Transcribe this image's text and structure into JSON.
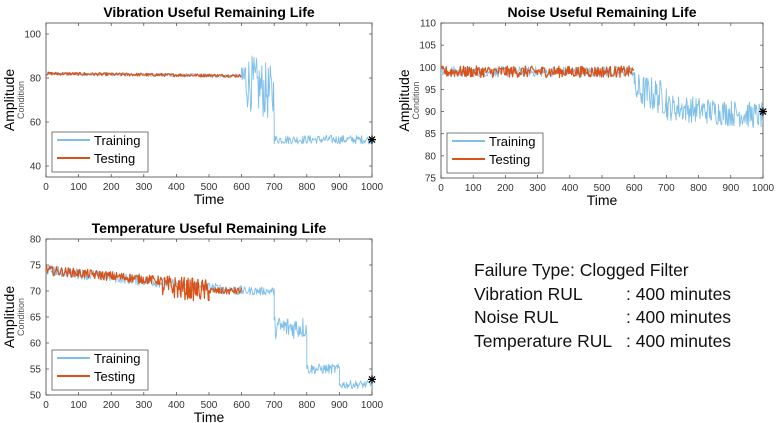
{
  "chart_data": [
    {
      "type": "line",
      "id": "vibration",
      "title": "Vibration Useful Remaining Life",
      "xlabel": "Time",
      "ylabel": "Amplitude",
      "ylabel_sub": "Condition",
      "xlim": [
        0,
        1000
      ],
      "ylim": [
        35,
        105
      ],
      "xticks": [
        0,
        100,
        200,
        300,
        400,
        500,
        600,
        700,
        800,
        900,
        1000
      ],
      "yticks": [
        40,
        60,
        80,
        100
      ],
      "legend": [
        "Training",
        "Testing"
      ],
      "legend_position": "bottom-left",
      "end_marker": {
        "x": 1000,
        "y": 52
      },
      "series": [
        {
          "name": "Training",
          "color": "#7fbfe8",
          "segments": [
            {
              "x": [
                0,
                600
              ],
              "level": [
                82,
                81
              ],
              "noise": 0.8
            },
            {
              "x": [
                600,
                700
              ],
              "level": [
                80,
                72
              ],
              "noise": 13
            },
            {
              "x": [
                700,
                1000
              ],
              "level": [
                52,
                52
              ],
              "noise": 2
            }
          ]
        },
        {
          "name": "Testing",
          "color": "#d95319",
          "segments": [
            {
              "x": [
                0,
                600
              ],
              "level": [
                82,
                81
              ],
              "noise": 0.7
            }
          ]
        }
      ]
    },
    {
      "type": "line",
      "id": "noise",
      "title": "Noise Useful Remaining Life",
      "xlabel": "Time",
      "ylabel": "Amplitude",
      "ylabel_sub": "Condition",
      "xlim": [
        0,
        1000
      ],
      "ylim": [
        75,
        110
      ],
      "xticks": [
        0,
        100,
        200,
        300,
        400,
        500,
        600,
        700,
        800,
        900,
        1000
      ],
      "yticks": [
        75,
        80,
        85,
        90,
        95,
        100,
        105,
        110
      ],
      "legend": [
        "Training",
        "Testing"
      ],
      "legend_position": "bottom-left",
      "end_marker": {
        "x": 1000,
        "y": 90
      },
      "series": [
        {
          "name": "Training",
          "color": "#7fbfe8",
          "segments": [
            {
              "x": [
                0,
                600
              ],
              "level": [
                99,
                99
              ],
              "noise": 1.2
            },
            {
              "x": [
                600,
                700
              ],
              "level": [
                95,
                93
              ],
              "noise": 4
            },
            {
              "x": [
                700,
                1000
              ],
              "level": [
                91,
                89
              ],
              "noise": 3
            }
          ]
        },
        {
          "name": "Testing",
          "color": "#d95319",
          "segments": [
            {
              "x": [
                0,
                600
              ],
              "level": [
                99,
                99
              ],
              "noise": 1.3
            }
          ]
        }
      ]
    },
    {
      "type": "line",
      "id": "temperature",
      "title": "Temperature Useful Remaining Life",
      "xlabel": "Time",
      "ylabel": "Amplitude",
      "ylabel_sub": "Condition",
      "xlim": [
        0,
        1000
      ],
      "ylim": [
        50,
        80
      ],
      "xticks": [
        0,
        100,
        200,
        300,
        400,
        500,
        600,
        700,
        800,
        900,
        1000
      ],
      "yticks": [
        50,
        55,
        60,
        65,
        70,
        75,
        80
      ],
      "legend": [
        "Training",
        "Testing"
      ],
      "legend_position": "bottom-left",
      "end_marker": {
        "x": 1000,
        "y": 53
      },
      "series": [
        {
          "name": "Training",
          "color": "#7fbfe8",
          "segments": [
            {
              "x": [
                0,
                600
              ],
              "level": [
                74,
                70
              ],
              "noise": 1
            },
            {
              "x": [
                600,
                700
              ],
              "level": [
                70,
                70
              ],
              "noise": 0.8
            },
            {
              "x": [
                700,
                800
              ],
              "level": [
                63,
                63
              ],
              "noise": 2.2
            },
            {
              "x": [
                800,
                900
              ],
              "level": [
                55,
                55
              ],
              "noise": 1
            },
            {
              "x": [
                900,
                1000
              ],
              "level": [
                52,
                52
              ],
              "noise": 0.8
            }
          ]
        },
        {
          "name": "Testing",
          "color": "#d95319",
          "segments": [
            {
              "x": [
                0,
                350
              ],
              "level": [
                74,
                72
              ],
              "noise": 0.9
            },
            {
              "x": [
                350,
                500
              ],
              "level": [
                71,
                70
              ],
              "noise": 2.2
            },
            {
              "x": [
                500,
                600
              ],
              "level": [
                70,
                70
              ],
              "noise": 0.7
            }
          ]
        }
      ]
    }
  ],
  "summary": {
    "failure_type_label": "Failure Type: Clogged Filter",
    "rows": [
      {
        "label": "Vibration RUL",
        "value": ": 400 minutes"
      },
      {
        "label": "Noise RUL",
        "value": ": 400 minutes"
      },
      {
        "label": "Temperature RUL",
        "value": ": 400 minutes"
      }
    ]
  }
}
